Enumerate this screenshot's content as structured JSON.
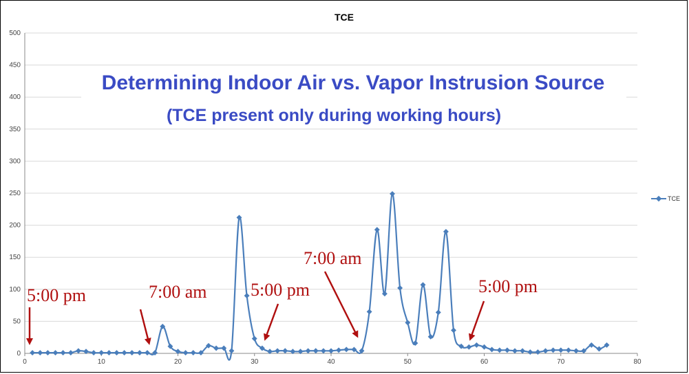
{
  "chart_data": {
    "type": "line",
    "title": "TCE",
    "xlim": [
      0,
      80
    ],
    "ylim": [
      0,
      500
    ],
    "xticks": [
      0,
      10,
      20,
      30,
      40,
      50,
      60,
      70,
      80
    ],
    "yticks": [
      0,
      50,
      100,
      150,
      200,
      250,
      300,
      350,
      400,
      450,
      500
    ],
    "grid": "horizontal",
    "legend_position": "right",
    "series": [
      {
        "name": "TCE",
        "color": "#4a7ebb",
        "x": [
          1,
          2,
          3,
          4,
          5,
          6,
          7,
          8,
          9,
          10,
          11,
          12,
          13,
          14,
          15,
          16,
          17,
          18,
          19,
          20,
          21,
          22,
          23,
          24,
          25,
          26,
          27,
          28,
          29,
          30,
          31,
          32,
          33,
          34,
          35,
          36,
          37,
          38,
          39,
          40,
          41,
          42,
          43,
          44,
          45,
          46,
          47,
          48,
          49,
          50,
          51,
          52,
          53,
          54,
          55,
          56,
          57,
          58,
          59,
          60,
          61,
          62,
          63,
          64,
          65,
          66,
          67,
          68,
          69,
          70,
          71,
          72,
          73,
          74,
          75,
          76
        ],
        "y": [
          1,
          1,
          1,
          1,
          1,
          1,
          4,
          3,
          1,
          1,
          1,
          1,
          1,
          1,
          1,
          1,
          1,
          42,
          11,
          3,
          1,
          1,
          1,
          12,
          8,
          8,
          4,
          212,
          90,
          23,
          8,
          3,
          4,
          4,
          3,
          3,
          4,
          4,
          4,
          4,
          5,
          6,
          6,
          4,
          65,
          193,
          93,
          249,
          102,
          48,
          16,
          107,
          26,
          64,
          190,
          36,
          11,
          10,
          13,
          10,
          6,
          5,
          5,
          4,
          4,
          2,
          2,
          4,
          5,
          5,
          5,
          4,
          4,
          13,
          7,
          13
        ]
      }
    ],
    "annotations": [
      {
        "text": "Determining Indoor Air vs. Vapor Instrusion Source"
      },
      {
        "text": "(TCE present only during working hours)"
      },
      {
        "text": "5:00 pm",
        "at_x": 1
      },
      {
        "text": "7:00 am",
        "at_x": 17
      },
      {
        "text": "5:00 pm",
        "at_x": 31
      },
      {
        "text": "7:00 am",
        "at_x": 44
      },
      {
        "text": "5:00 pm",
        "at_x": 58
      }
    ]
  }
}
